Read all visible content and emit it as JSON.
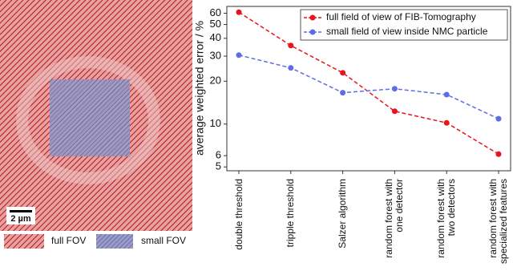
{
  "image_panel": {
    "scale_bar": "2 µm",
    "legend": [
      "full FOV",
      "small FOV"
    ]
  },
  "chart_data": {
    "type": "line",
    "ylabel": "average weighted error / %",
    "yscale": "log",
    "categories": [
      "double threshold",
      "tripple threshold",
      "Salzer algorithm",
      "random forest with one detector",
      "random forest with two detectors",
      "random forest with specialized features"
    ],
    "series": [
      {
        "name": "full field of view of FIB-Tomography",
        "color": "#e8141b",
        "values": [
          61,
          35.6,
          22.9,
          12.3,
          10.2,
          6.15
        ]
      },
      {
        "name": "small field of view inside NMC particle",
        "color": "#5d6de6",
        "values": [
          30.5,
          24.8,
          16.6,
          17.7,
          16.1,
          10.9
        ]
      }
    ],
    "ylim": [
      4.7,
      67
    ],
    "yticks": [
      5,
      6,
      10,
      20,
      30,
      40,
      50,
      60
    ],
    "legend": "upper right"
  }
}
